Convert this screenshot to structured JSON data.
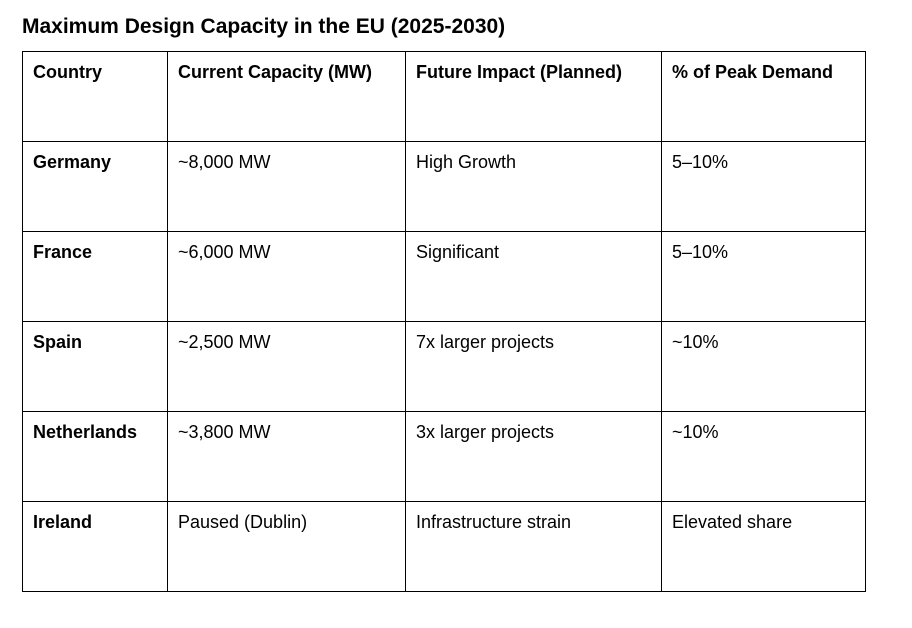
{
  "title": "Maximum Design Capacity in the EU (2025-2030)",
  "table": {
    "headers": [
      "Country",
      "Current Capacity (MW)",
      "Future Impact (Planned)",
      "% of Peak Demand"
    ],
    "rows": [
      [
        "Germany",
        "~8,000 MW",
        "High Growth",
        "5–10%"
      ],
      [
        "France",
        "~6,000 MW",
        "Significant",
        "5–10%"
      ],
      [
        "Spain",
        "~2,500 MW",
        "7x larger projects",
        "~10%"
      ],
      [
        "Netherlands",
        "~3,800 MW",
        "3x larger projects",
        "~10%"
      ],
      [
        "Ireland",
        "Paused (Dublin)",
        "Infrastructure strain",
        "Elevated share"
      ]
    ]
  }
}
